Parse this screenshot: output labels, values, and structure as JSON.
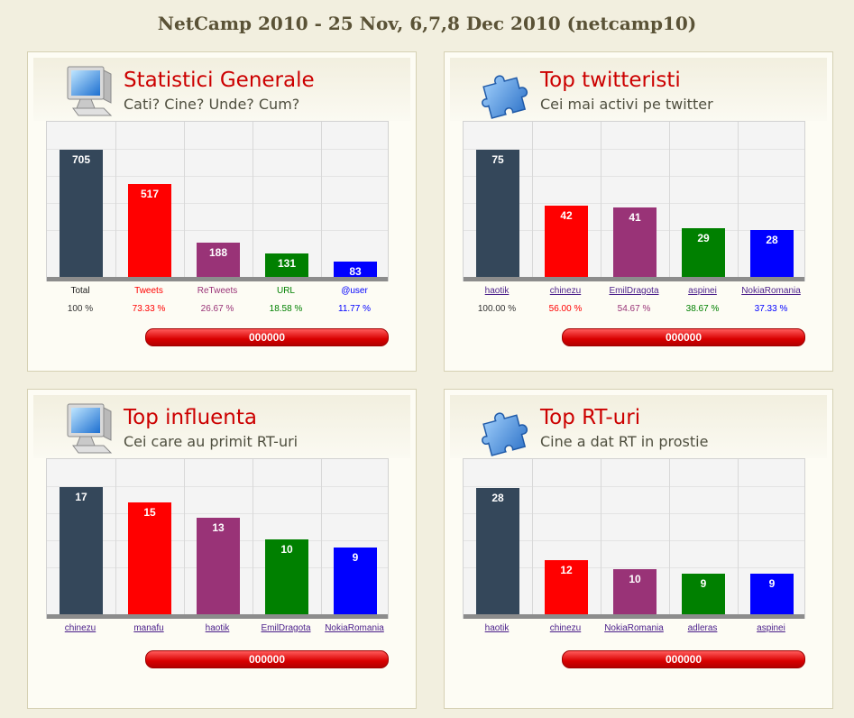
{
  "page_title": "NetCamp 2010 - 25 Nov, 6,7,8 Dec 2010 (netcamp10)",
  "colors": {
    "title_red": "#cc0000",
    "background": "#f2efdf",
    "bar_palette": [
      "#34475a",
      "#ff0000",
      "#993377",
      "#008000",
      "#0000ff"
    ]
  },
  "panels": [
    {
      "title": "Statistici Generale",
      "subtitle": "Cati? Cine? Unde? Cum?",
      "icon": "monitor-icon",
      "counter": "000000",
      "chart_data": {
        "type": "bar",
        "categories": [
          "Total",
          "Tweets",
          "ReTweets",
          "URL",
          "@user"
        ],
        "values": [
          705,
          517,
          188,
          131,
          83
        ],
        "percents": [
          "100 %",
          "73.33 %",
          "26.67 %",
          "18.58 %",
          "11.77 %"
        ],
        "ylim": [
          0,
          740
        ],
        "links": false
      }
    },
    {
      "title": "Top twitteristi",
      "subtitle": "Cei mai activi pe twitter",
      "icon": "puzzle-icon",
      "counter": "000000",
      "chart_data": {
        "type": "bar",
        "categories": [
          "haotik",
          "chinezu",
          "EmilDragota",
          "aspinei",
          "NokiaRomania"
        ],
        "values": [
          75,
          42,
          41,
          29,
          28
        ],
        "percents": [
          "100.00 %",
          "56.00 %",
          "54.67 %",
          "38.67 %",
          "37.33 %"
        ],
        "ylim": [
          0,
          79
        ],
        "links": true
      }
    },
    {
      "title": "Top influenta",
      "subtitle": "Cei care au primit RT-uri",
      "icon": "monitor-icon",
      "counter": "000000",
      "chart_data": {
        "type": "bar",
        "categories": [
          "chinezu",
          "manafu",
          "haotik",
          "EmilDragota",
          "NokiaRomania"
        ],
        "values": [
          17,
          15,
          13,
          10,
          9
        ],
        "ylim": [
          0,
          17.9
        ],
        "links": true
      }
    },
    {
      "title": "Top RT-uri",
      "subtitle": "Cine a dat RT in prostie",
      "icon": "puzzle-icon",
      "counter": "000000",
      "chart_data": {
        "type": "bar",
        "categories": [
          "haotik",
          "chinezu",
          "NokiaRomania",
          "adleras",
          "aspinei"
        ],
        "values": [
          28,
          12,
          10,
          9,
          9
        ],
        "ylim": [
          0,
          29.5
        ],
        "links": true
      }
    }
  ]
}
